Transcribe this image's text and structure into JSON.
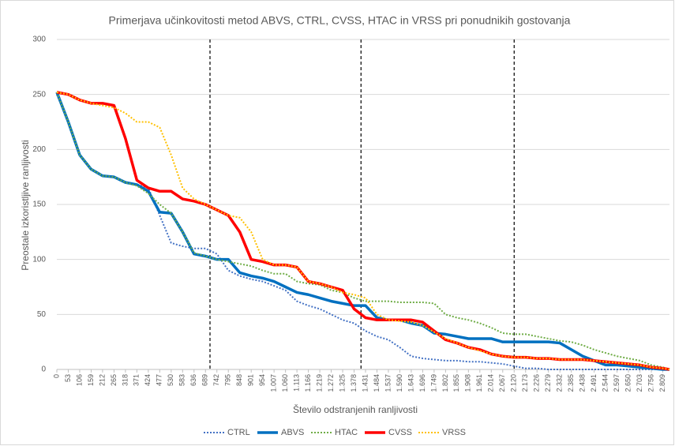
{
  "chart_data": {
    "type": "line",
    "title": "Primerjava učinkovitosti metod ABVS, CTRL, CVSS, HTAC in VRSS pri ponudnikih gostovanja",
    "x_label": "Število odstranjenih ranljivosti",
    "y_label": "Preostale izkoristljive ranljivosti",
    "x": [
      0,
      53,
      106,
      159,
      212,
      265,
      318,
      371,
      424,
      477,
      530,
      583,
      636,
      689,
      742,
      795,
      848,
      901,
      954,
      1007,
      1060,
      1113,
      1166,
      1219,
      1272,
      1325,
      1378,
      1431,
      1484,
      1537,
      1590,
      1643,
      1696,
      1749,
      1802,
      1855,
      1908,
      1961,
      2014,
      2067,
      2120,
      2173,
      2226,
      2279,
      2332,
      2385,
      2438,
      2491,
      2544,
      2597,
      2650,
      2703,
      2756,
      2809,
      2840
    ],
    "xlim": [
      0,
      2840
    ],
    "xticks": [
      0,
      53,
      106,
      159,
      212,
      265,
      318,
      371,
      424,
      477,
      530,
      583,
      636,
      689,
      742,
      795,
      848,
      901,
      954,
      {
        "value": 1007,
        "label": "1.007"
      },
      {
        "value": 1060,
        "label": "1.060"
      },
      {
        "value": 1113,
        "label": "1.113"
      },
      {
        "value": 1166,
        "label": "1.166"
      },
      {
        "value": 1219,
        "label": "1.219"
      },
      {
        "value": 1272,
        "label": "1.272"
      },
      {
        "value": 1325,
        "label": "1.325"
      },
      {
        "value": 1378,
        "label": "1.378"
      },
      {
        "value": 1431,
        "label": "1.431"
      },
      {
        "value": 1484,
        "label": "1.484"
      },
      {
        "value": 1537,
        "label": "1.537"
      },
      {
        "value": 1590,
        "label": "1.590"
      },
      {
        "value": 1643,
        "label": "1.643"
      },
      {
        "value": 1696,
        "label": "1.696"
      },
      {
        "value": 1749,
        "label": "1.749"
      },
      {
        "value": 1802,
        "label": "1.802"
      },
      {
        "value": 1855,
        "label": "1.855"
      },
      {
        "value": 1908,
        "label": "1.908"
      },
      {
        "value": 1961,
        "label": "1.961"
      },
      {
        "value": 2014,
        "label": "2.014"
      },
      {
        "value": 2067,
        "label": "2.067"
      },
      {
        "value": 2120,
        "label": "2.120"
      },
      {
        "value": 2173,
        "label": "2.173"
      },
      {
        "value": 2226,
        "label": "2.226"
      },
      {
        "value": 2279,
        "label": "2.279"
      },
      {
        "value": 2332,
        "label": "2.332"
      },
      {
        "value": 2385,
        "label": "2.385"
      },
      {
        "value": 2438,
        "label": "2.438"
      },
      {
        "value": 2491,
        "label": "2.491"
      },
      {
        "value": 2544,
        "label": "2.544"
      },
      {
        "value": 2597,
        "label": "2.597"
      },
      {
        "value": 2650,
        "label": "2.650"
      },
      {
        "value": 2703,
        "label": "2.703"
      },
      {
        "value": 2756,
        "label": "2.756"
      },
      {
        "value": 2809,
        "label": "2.809"
      }
    ],
    "ylim": [
      0,
      300
    ],
    "yticks": [
      0,
      50,
      100,
      150,
      200,
      250,
      300
    ],
    "grid": true,
    "vlines": [
      710,
      1410,
      2120
    ],
    "legend": "bottom",
    "series": [
      {
        "name": "CTRL",
        "color": "#4472c4",
        "dash": "dotted",
        "values": [
          250,
          225,
          195,
          182,
          176,
          175,
          170,
          168,
          165,
          140,
          115,
          112,
          110,
          110,
          105,
          90,
          85,
          82,
          80,
          76,
          72,
          62,
          58,
          55,
          50,
          45,
          42,
          35,
          30,
          27,
          20,
          12,
          10,
          9,
          8,
          8,
          7,
          7,
          6,
          5,
          3,
          1,
          1,
          0,
          0,
          0,
          0,
          0,
          0,
          0,
          0,
          0,
          0,
          0,
          0
        ]
      },
      {
        "name": "ABVS",
        "color": "#0070c0",
        "dash": "solid",
        "values": [
          252,
          225,
          195,
          182,
          176,
          175,
          170,
          168,
          162,
          143,
          142,
          125,
          105,
          103,
          100,
          100,
          88,
          85,
          83,
          80,
          75,
          70,
          68,
          65,
          62,
          60,
          58,
          58,
          47,
          45,
          45,
          42,
          40,
          33,
          32,
          30,
          28,
          28,
          28,
          25,
          25,
          25,
          25,
          25,
          24,
          18,
          12,
          8,
          4,
          4,
          3,
          2,
          1,
          0,
          0
        ]
      },
      {
        "name": "HTAC",
        "color": "#70ad47",
        "dash": "dotted",
        "values": [
          252,
          225,
          195,
          182,
          176,
          175,
          170,
          167,
          160,
          150,
          142,
          125,
          106,
          103,
          100,
          98,
          96,
          94,
          90,
          87,
          87,
          80,
          78,
          77,
          72,
          70,
          65,
          62,
          62,
          62,
          61,
          61,
          61,
          60,
          50,
          47,
          45,
          42,
          38,
          33,
          32,
          32,
          30,
          28,
          26,
          25,
          22,
          18,
          15,
          12,
          10,
          8,
          4,
          2,
          0
        ]
      },
      {
        "name": "CVSS",
        "color": "#ff0000",
        "dash": "solid",
        "values": [
          252,
          250,
          245,
          242,
          242,
          240,
          210,
          172,
          165,
          162,
          162,
          155,
          153,
          150,
          145,
          140,
          125,
          100,
          98,
          95,
          95,
          93,
          80,
          78,
          75,
          72,
          55,
          47,
          45,
          45,
          45,
          45,
          43,
          35,
          27,
          24,
          20,
          18,
          14,
          12,
          11,
          11,
          10,
          10,
          9,
          9,
          9,
          8,
          7,
          6,
          5,
          4,
          2,
          1,
          0
        ]
      },
      {
        "name": "VRSS",
        "color": "#ffc000",
        "dash": "dotted",
        "values": [
          252,
          250,
          245,
          242,
          240,
          238,
          233,
          225,
          225,
          220,
          195,
          165,
          155,
          150,
          145,
          140,
          138,
          125,
          100,
          95,
          95,
          93,
          80,
          78,
          75,
          70,
          68,
          65,
          50,
          45,
          44,
          43,
          40,
          34,
          28,
          24,
          20,
          17,
          14,
          12,
          11,
          11,
          10,
          10,
          9,
          9,
          9,
          8,
          7,
          6,
          5,
          4,
          2,
          1,
          0
        ]
      }
    ]
  }
}
